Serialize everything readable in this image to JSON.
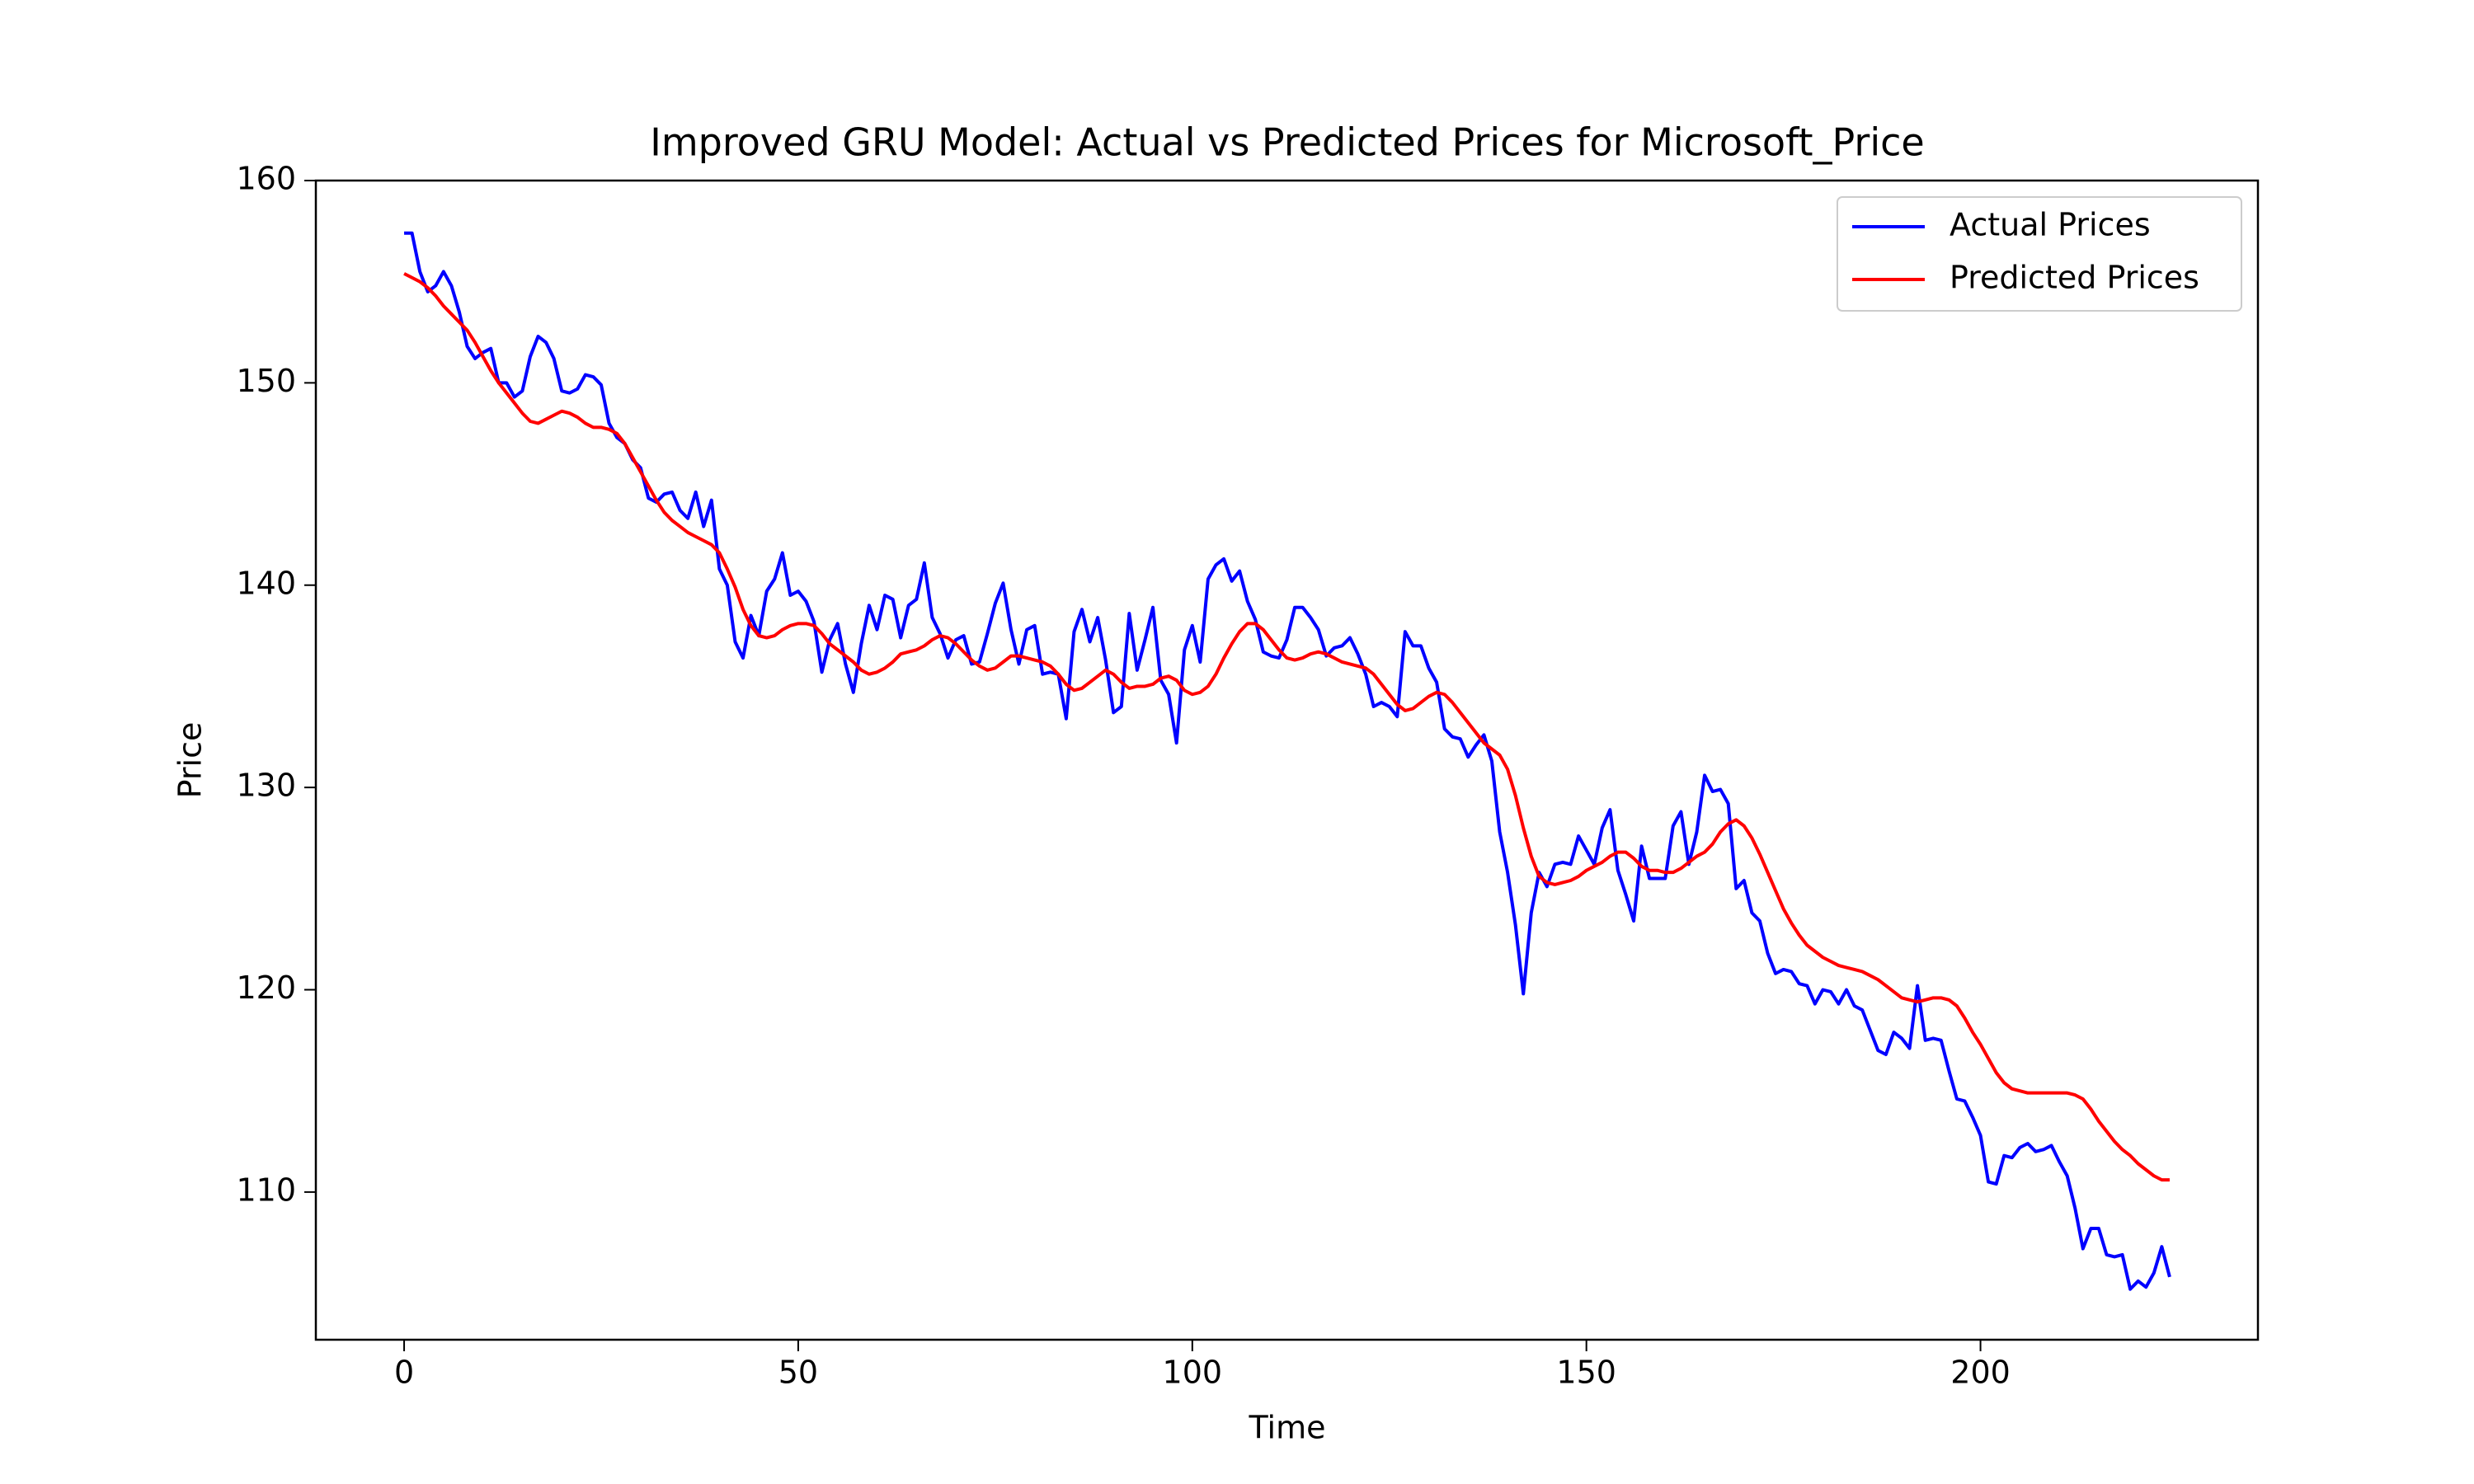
{
  "chart_data": {
    "type": "line",
    "title": "Improved GRU Model: Actual vs Predicted Prices for Microsoft_Price",
    "xlabel": "Time",
    "ylabel": "Price",
    "x": [
      0,
      1,
      2,
      3,
      4,
      5,
      6,
      7,
      8,
      9,
      10,
      11,
      12,
      13,
      14,
      15,
      16,
      17,
      18,
      19,
      20,
      21,
      22,
      23,
      24,
      25,
      26,
      27,
      28,
      29,
      30,
      31,
      32,
      33,
      34,
      35,
      36,
      37,
      38,
      39,
      40,
      41,
      42,
      43,
      44,
      45,
      46,
      47,
      48,
      49,
      50,
      51,
      52,
      53,
      54,
      55,
      56,
      57,
      58,
      59,
      60,
      61,
      62,
      63,
      64,
      65,
      66,
      67,
      68,
      69,
      70,
      71,
      72,
      73,
      74,
      75,
      76,
      77,
      78,
      79,
      80,
      81,
      82,
      83,
      84,
      85,
      86,
      87,
      88,
      89,
      90,
      91,
      92,
      93,
      94,
      95,
      96,
      97,
      98,
      99,
      100,
      101,
      102,
      103,
      104,
      105,
      106,
      107,
      108,
      109,
      110,
      111,
      112,
      113,
      114,
      115,
      116,
      117,
      118,
      119,
      120,
      121,
      122,
      123,
      124,
      125,
      126,
      127,
      128,
      129,
      130,
      131,
      132,
      133,
      134,
      135,
      136,
      137,
      138,
      139,
      140,
      141,
      142,
      143,
      144,
      145,
      146,
      147,
      148,
      149,
      150,
      151,
      152,
      153,
      154,
      155,
      156,
      157,
      158,
      159,
      160,
      161,
      162,
      163,
      164,
      165,
      166,
      167,
      168,
      169,
      170,
      171,
      172,
      173,
      174,
      175,
      176,
      177,
      178,
      179,
      180,
      181,
      182,
      183,
      184,
      185,
      186,
      187,
      188,
      189,
      190,
      191,
      192,
      193,
      194,
      195,
      196,
      197,
      198,
      199,
      200,
      201,
      202,
      203,
      204,
      205,
      206,
      207,
      208,
      209,
      210,
      211,
      212,
      213,
      214,
      215,
      216,
      217,
      218,
      219,
      220,
      221,
      222,
      223,
      224
    ],
    "series": [
      {
        "name": "Actual Prices",
        "color": "#0000ff",
        "values": [
          157.4,
          157.4,
          155.5,
          154.5,
          154.8,
          155.5,
          154.8,
          153.5,
          151.8,
          151.2,
          151.5,
          151.7,
          150.0,
          150.0,
          149.3,
          149.6,
          151.3,
          152.3,
          152.0,
          151.2,
          149.6,
          149.5,
          149.7,
          150.4,
          150.3,
          149.9,
          148.0,
          147.3,
          147.0,
          146.2,
          145.8,
          144.3,
          144.1,
          144.5,
          144.6,
          143.7,
          143.3,
          144.6,
          142.9,
          144.2,
          140.8,
          140.0,
          137.2,
          136.4,
          138.5,
          137.5,
          139.7,
          140.3,
          141.6,
          139.5,
          139.7,
          139.2,
          138.2,
          135.7,
          137.3,
          138.1,
          136.1,
          134.7,
          137.1,
          139.0,
          137.8,
          139.5,
          139.3,
          137.4,
          139.0,
          139.3,
          141.1,
          138.4,
          137.6,
          136.4,
          137.3,
          137.5,
          136.1,
          136.2,
          137.6,
          139.1,
          140.1,
          137.8,
          136.1,
          137.8,
          138.0,
          135.6,
          135.7,
          135.6,
          133.4,
          137.7,
          138.8,
          137.2,
          138.4,
          136.3,
          133.7,
          134.0,
          138.6,
          135.8,
          137.3,
          138.9,
          135.3,
          134.6,
          132.2,
          136.8,
          138.0,
          136.2,
          140.3,
          141.0,
          141.3,
          140.2,
          140.7,
          139.2,
          138.3,
          136.7,
          136.5,
          136.4,
          137.3,
          138.9,
          138.9,
          138.4,
          137.8,
          136.5,
          136.9,
          137.0,
          137.4,
          136.6,
          135.6,
          134.0,
          134.2,
          134.0,
          133.5,
          137.7,
          137.0,
          137.0,
          135.9,
          135.2,
          132.9,
          132.5,
          132.4,
          131.5,
          132.1,
          132.6,
          131.3,
          127.8,
          125.8,
          123.2,
          119.8,
          123.8,
          125.8,
          125.1,
          126.2,
          126.3,
          126.2,
          127.6,
          126.9,
          126.2,
          128.0,
          128.9,
          125.9,
          124.7,
          123.4,
          127.1,
          125.5,
          125.5,
          125.5,
          128.1,
          128.8,
          126.2,
          127.8,
          130.6,
          129.8,
          129.9,
          129.2,
          125.0,
          125.4,
          123.8,
          123.4,
          121.8,
          120.8,
          121.0,
          120.9,
          120.3,
          120.2,
          119.3,
          120.0,
          119.9,
          119.3,
          120.0,
          119.2,
          119.0,
          118.0,
          117.0,
          116.8,
          117.9,
          117.6,
          117.1,
          120.2,
          117.5,
          117.6,
          117.5,
          116.0,
          114.6,
          114.5,
          113.7,
          112.8,
          110.5,
          110.4,
          111.8,
          111.7,
          112.2,
          112.4,
          112.0,
          112.1,
          112.3,
          111.5,
          110.8,
          109.2,
          107.2,
          108.2,
          108.2,
          106.9,
          106.8,
          106.9,
          105.2,
          105.6,
          105.3,
          106.0,
          107.3,
          105.8
        ]
      },
      {
        "name": "Predicted Prices",
        "color": "#ff0000",
        "values": [
          155.4,
          155.2,
          155.0,
          154.7,
          154.3,
          153.8,
          153.4,
          153.0,
          152.6,
          152.0,
          151.3,
          150.6,
          150.0,
          149.5,
          149.0,
          148.5,
          148.1,
          148.0,
          148.2,
          148.4,
          148.6,
          148.5,
          148.3,
          148.0,
          147.8,
          147.8,
          147.7,
          147.5,
          147.0,
          146.3,
          145.6,
          144.9,
          144.2,
          143.6,
          143.2,
          142.9,
          142.6,
          142.4,
          142.2,
          142.0,
          141.6,
          140.8,
          139.9,
          138.8,
          138.0,
          137.5,
          137.4,
          137.5,
          137.8,
          138.0,
          138.1,
          138.1,
          138.0,
          137.6,
          137.1,
          136.8,
          136.5,
          136.2,
          135.8,
          135.6,
          135.7,
          135.9,
          136.2,
          136.6,
          136.7,
          136.8,
          137.0,
          137.3,
          137.5,
          137.4,
          137.1,
          136.7,
          136.3,
          136.0,
          135.8,
          135.9,
          136.2,
          136.5,
          136.5,
          136.4,
          136.3,
          136.2,
          136.0,
          135.6,
          135.1,
          134.8,
          134.9,
          135.2,
          135.5,
          135.8,
          135.6,
          135.2,
          134.9,
          135.0,
          135.0,
          135.1,
          135.4,
          135.5,
          135.3,
          134.8,
          134.6,
          134.7,
          135.0,
          135.6,
          136.4,
          137.1,
          137.7,
          138.1,
          138.1,
          137.8,
          137.3,
          136.8,
          136.4,
          136.3,
          136.4,
          136.6,
          136.7,
          136.6,
          136.4,
          136.2,
          136.1,
          136.0,
          135.9,
          135.6,
          135.1,
          134.6,
          134.1,
          133.8,
          133.9,
          134.2,
          134.5,
          134.7,
          134.6,
          134.2,
          133.7,
          133.2,
          132.7,
          132.2,
          131.9,
          131.6,
          130.9,
          129.6,
          128.0,
          126.6,
          125.6,
          125.3,
          125.2,
          125.3,
          125.4,
          125.6,
          125.9,
          126.1,
          126.3,
          126.6,
          126.8,
          126.8,
          126.5,
          126.1,
          125.9,
          125.9,
          125.8,
          125.8,
          126.0,
          126.3,
          126.6,
          126.8,
          127.2,
          127.8,
          128.2,
          128.4,
          128.1,
          127.5,
          126.7,
          125.8,
          124.9,
          124.0,
          123.3,
          122.7,
          122.2,
          121.9,
          121.6,
          121.4,
          121.2,
          121.1,
          121.0,
          120.9,
          120.7,
          120.5,
          120.2,
          119.9,
          119.6,
          119.5,
          119.4,
          119.5,
          119.6,
          119.6,
          119.5,
          119.2,
          118.6,
          117.9,
          117.3,
          116.6,
          115.9,
          115.4,
          115.1,
          115.0,
          114.9,
          114.9,
          114.9,
          114.9,
          114.9,
          114.9,
          114.8,
          114.6,
          114.1,
          113.5,
          113.0,
          112.5,
          112.1,
          111.8,
          111.4,
          111.1,
          110.8,
          110.6,
          110.6
        ]
      }
    ],
    "xlim": [
      -11.2,
      235.2
    ],
    "xticks": [
      0,
      50,
      100,
      150,
      200
    ],
    "ylim": [
      102.7,
      160
    ],
    "yticks": [
      110,
      120,
      130,
      140,
      150,
      160
    ],
    "grid": false,
    "legend": "upper right"
  }
}
